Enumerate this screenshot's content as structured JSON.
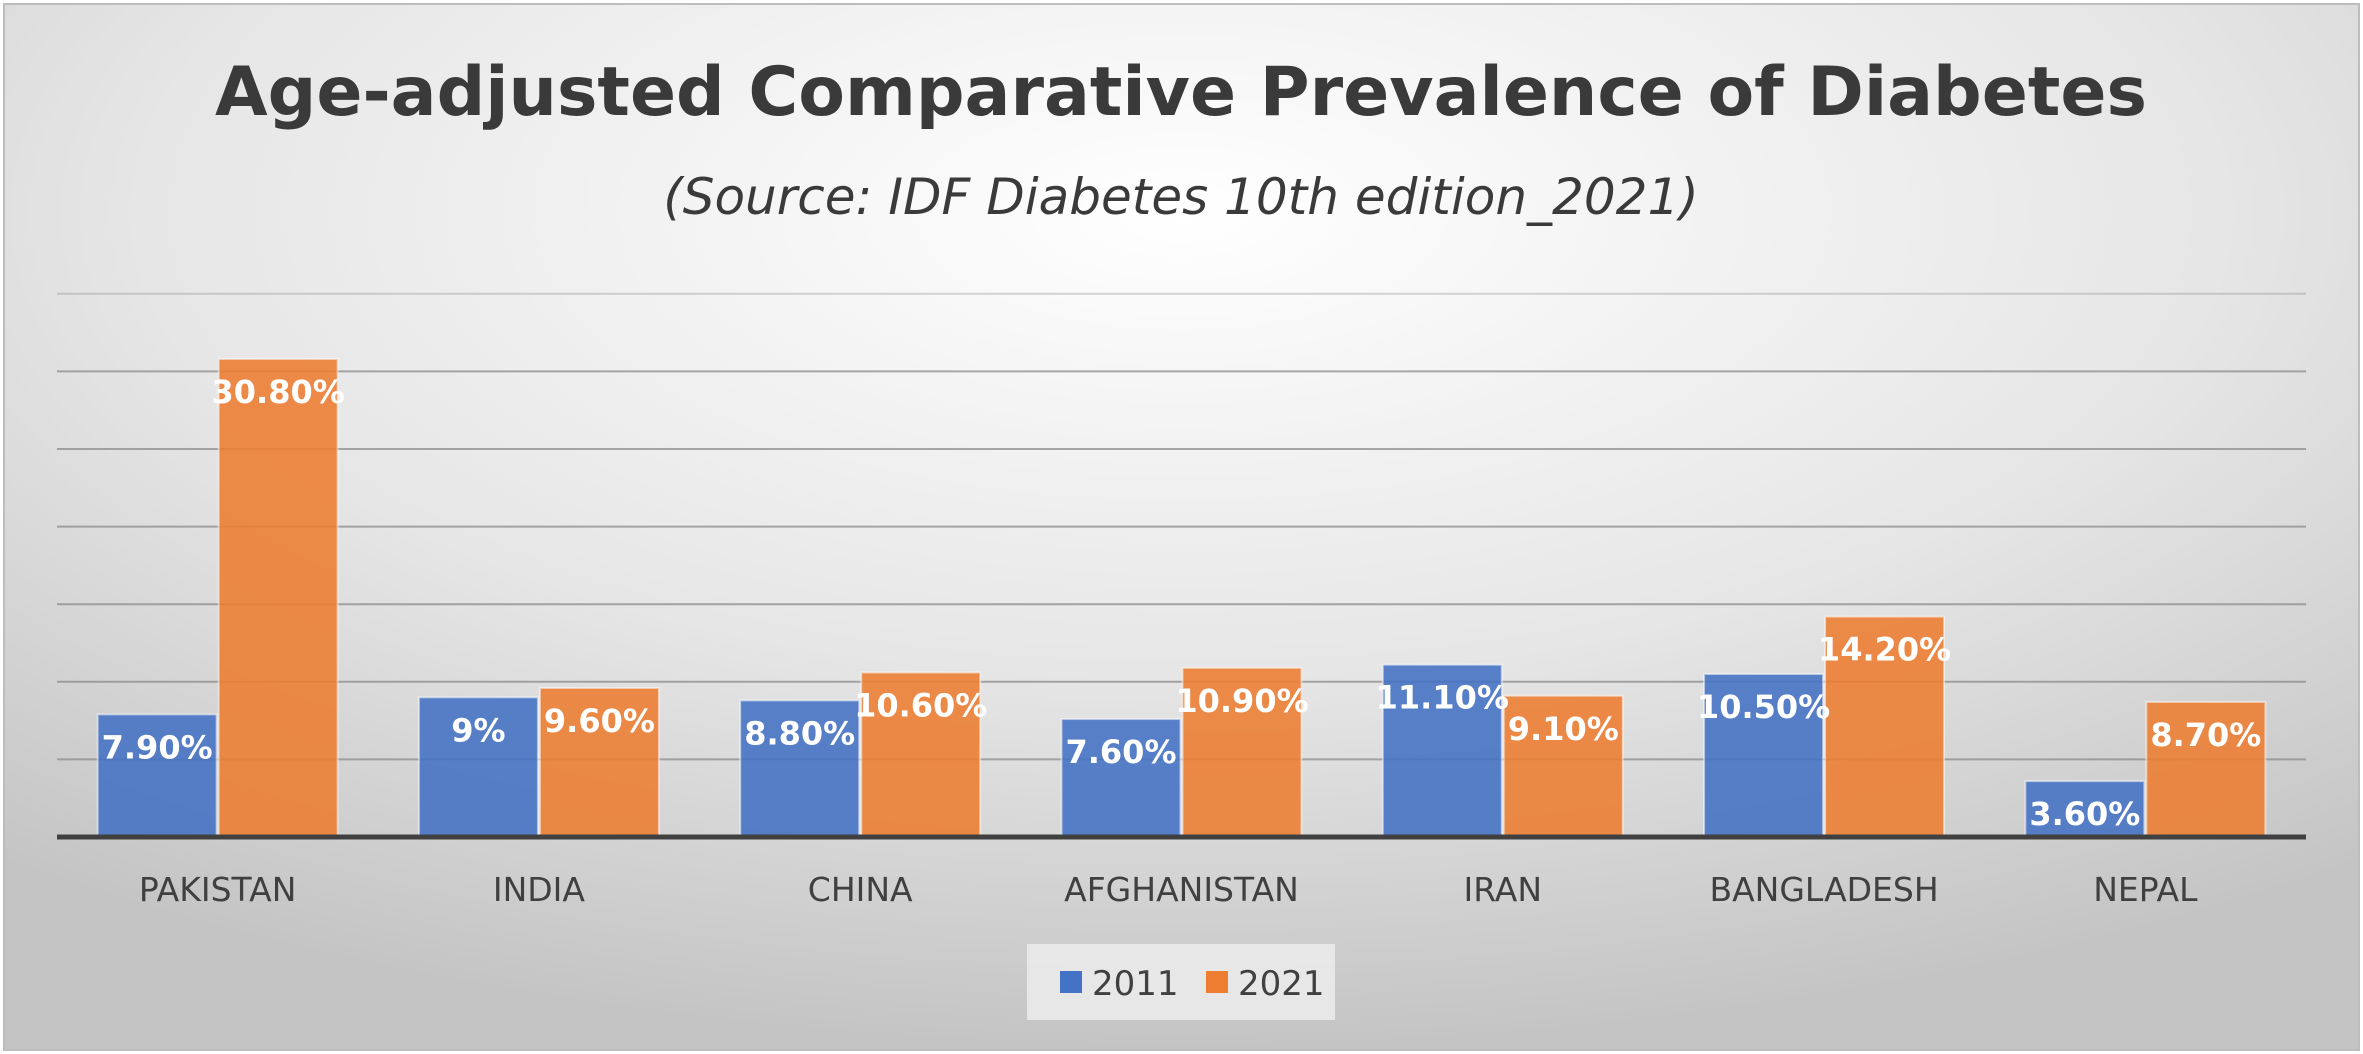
{
  "chart_data": {
    "type": "bar",
    "title": "Age-adjusted Comparative Prevalence of Diabetes",
    "subtitle": "(Source: IDF Diabetes 10th edition_2021)",
    "categories": [
      "PAKISTAN",
      "INDIA",
      "CHINA",
      "AFGHANISTAN",
      "IRAN",
      "BANGLADESH",
      "NEPAL"
    ],
    "series": [
      {
        "name": "2011",
        "color": "#4472C4",
        "values": [
          7.9,
          9,
          8.8,
          7.6,
          11.1,
          10.5,
          3.6
        ],
        "labels": [
          "7.90%",
          "9%",
          "8.80%",
          "7.60%",
          "11.10%",
          "10.50%",
          "3.60%"
        ]
      },
      {
        "name": "2021",
        "color": "#ED7D31",
        "values": [
          30.8,
          9.6,
          10.6,
          10.9,
          9.1,
          14.2,
          8.7
        ],
        "labels": [
          "30.80%",
          "9.60%",
          "10.60%",
          "10.90%",
          "9.10%",
          "14.20%",
          "8.70%"
        ]
      }
    ],
    "xlabel": "",
    "ylabel": "",
    "ylim": [
      0,
      35
    ],
    "y_axis_labels_visible": false,
    "grid": true,
    "legend_position": "bottom"
  }
}
